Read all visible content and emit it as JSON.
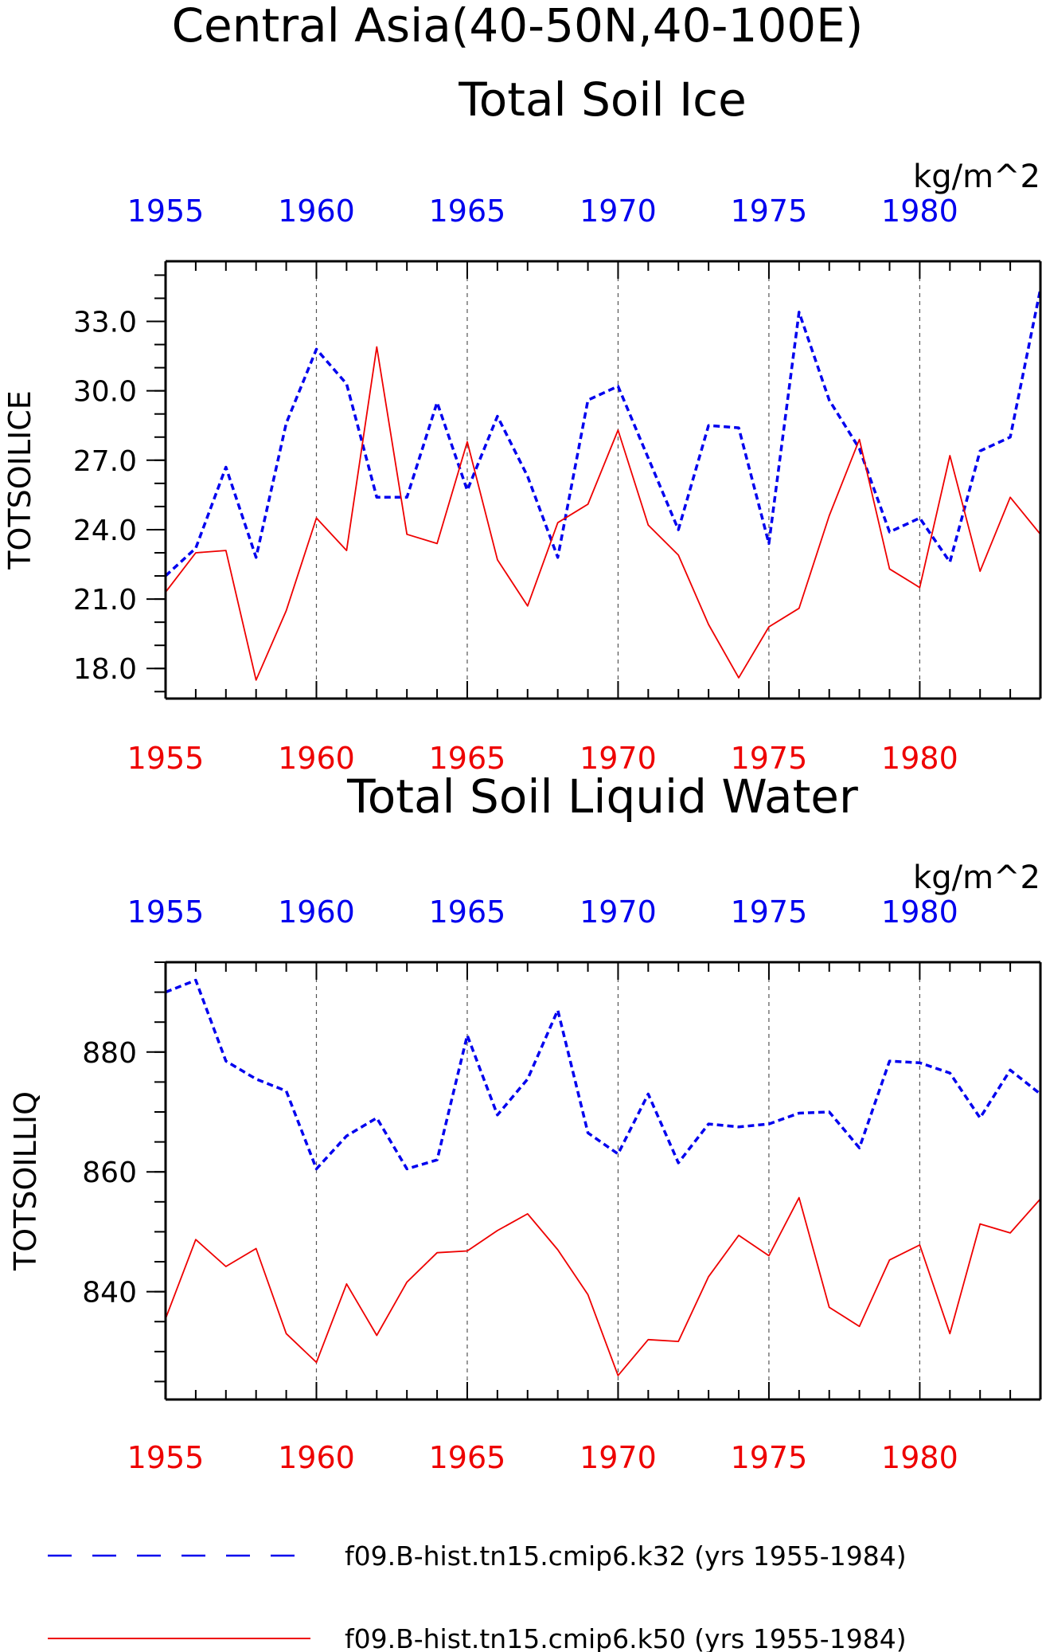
{
  "figure": {
    "title": "Central Asia(40-50N,40-100E)"
  },
  "colors": {
    "k32": "#0000ee",
    "k50": "#ee0000",
    "grid": "#555555",
    "axis": "#000000"
  },
  "legend": [
    {
      "label": "f09.B-hist.tn15.cmip6.k32 (yrs 1955-1984)",
      "color": "#0000ee",
      "style": "dashed"
    },
    {
      "label": "f09.B-hist.tn15.cmip6.k50 (yrs 1955-1984)",
      "color": "#ee0000",
      "style": "solid"
    }
  ],
  "chart_data": [
    {
      "type": "line",
      "title": "Total Soil Ice",
      "units": "kg/m^2",
      "ylabel": "TOTSOILICE",
      "xlim": [
        1955,
        1984
      ],
      "ylim": [
        16.7,
        35.6
      ],
      "y_ticks": [
        "18.0",
        "21.0",
        "24.0",
        "27.0",
        "30.0",
        "33.0"
      ],
      "y_minor_step": 1,
      "x_ticks": [
        "1955",
        "1960",
        "1965",
        "1970",
        "1975",
        "1980"
      ],
      "x": [
        1955,
        1956,
        1957,
        1958,
        1959,
        1960,
        1961,
        1962,
        1963,
        1964,
        1965,
        1966,
        1967,
        1968,
        1969,
        1970,
        1971,
        1972,
        1973,
        1974,
        1975,
        1976,
        1977,
        1978,
        1979,
        1980,
        1981,
        1982,
        1983,
        1984
      ],
      "series": [
        {
          "name": "f09.B-hist.tn15.cmip6.k32",
          "color": "#0000ee",
          "style": "dashed",
          "values": [
            22.0,
            23.2,
            26.7,
            22.8,
            28.6,
            31.8,
            30.3,
            25.4,
            25.4,
            29.5,
            25.7,
            28.9,
            26.3,
            22.8,
            29.6,
            30.2,
            27.1,
            24.0,
            28.5,
            28.4,
            23.4,
            33.4,
            29.6,
            27.5,
            23.9,
            24.5,
            22.6,
            27.4,
            28.0,
            34.4
          ]
        },
        {
          "name": "f09.B-hist.tn15.cmip6.k50",
          "color": "#ee0000",
          "style": "solid",
          "values": [
            21.3,
            23.0,
            23.1,
            17.5,
            20.5,
            24.5,
            23.1,
            31.9,
            23.8,
            23.4,
            27.8,
            22.7,
            20.7,
            24.3,
            25.1,
            28.3,
            24.2,
            22.9,
            19.9,
            17.6,
            19.8,
            20.6,
            24.6,
            27.9,
            22.3,
            21.5,
            27.2,
            22.2,
            25.4,
            23.8
          ]
        }
      ]
    },
    {
      "type": "line",
      "title": "Total Soil Liquid Water",
      "units": "kg/m^2",
      "ylabel": "TOTSOILLIQ",
      "xlim": [
        1955,
        1984
      ],
      "ylim": [
        822,
        895
      ],
      "y_ticks": [
        "840",
        "860",
        "880"
      ],
      "y_minor_step": 5,
      "x_ticks": [
        "1955",
        "1960",
        "1965",
        "1970",
        "1975",
        "1980"
      ],
      "x": [
        1955,
        1956,
        1957,
        1958,
        1959,
        1960,
        1961,
        1962,
        1963,
        1964,
        1965,
        1966,
        1967,
        1968,
        1969,
        1970,
        1971,
        1972,
        1973,
        1974,
        1975,
        1976,
        1977,
        1978,
        1979,
        1980,
        1981,
        1982,
        1983,
        1984
      ],
      "series": [
        {
          "name": "f09.B-hist.tn15.cmip6.k32",
          "color": "#0000ee",
          "style": "dashed",
          "values": [
            890,
            892,
            878.5,
            875.5,
            873.5,
            860.5,
            866,
            869,
            860.5,
            862,
            882.8,
            869.5,
            875.5,
            887,
            866.5,
            863,
            873,
            861.5,
            868,
            867.5,
            868,
            869.8,
            870,
            864,
            878.5,
            878.2,
            876.5,
            869,
            877,
            873
          ]
        },
        {
          "name": "f09.B-hist.tn15.cmip6.k50",
          "color": "#ee0000",
          "style": "solid",
          "values": [
            835.5,
            848.7,
            844.2,
            847.2,
            833,
            828.2,
            841.3,
            832.7,
            841.6,
            846.5,
            846.8,
            850.2,
            853,
            847,
            839.5,
            826,
            832,
            831.7,
            842.5,
            849.4,
            846,
            855.7,
            837.4,
            834.2,
            845.3,
            847.8,
            833,
            851.3,
            849.8,
            855.5
          ]
        }
      ]
    }
  ]
}
